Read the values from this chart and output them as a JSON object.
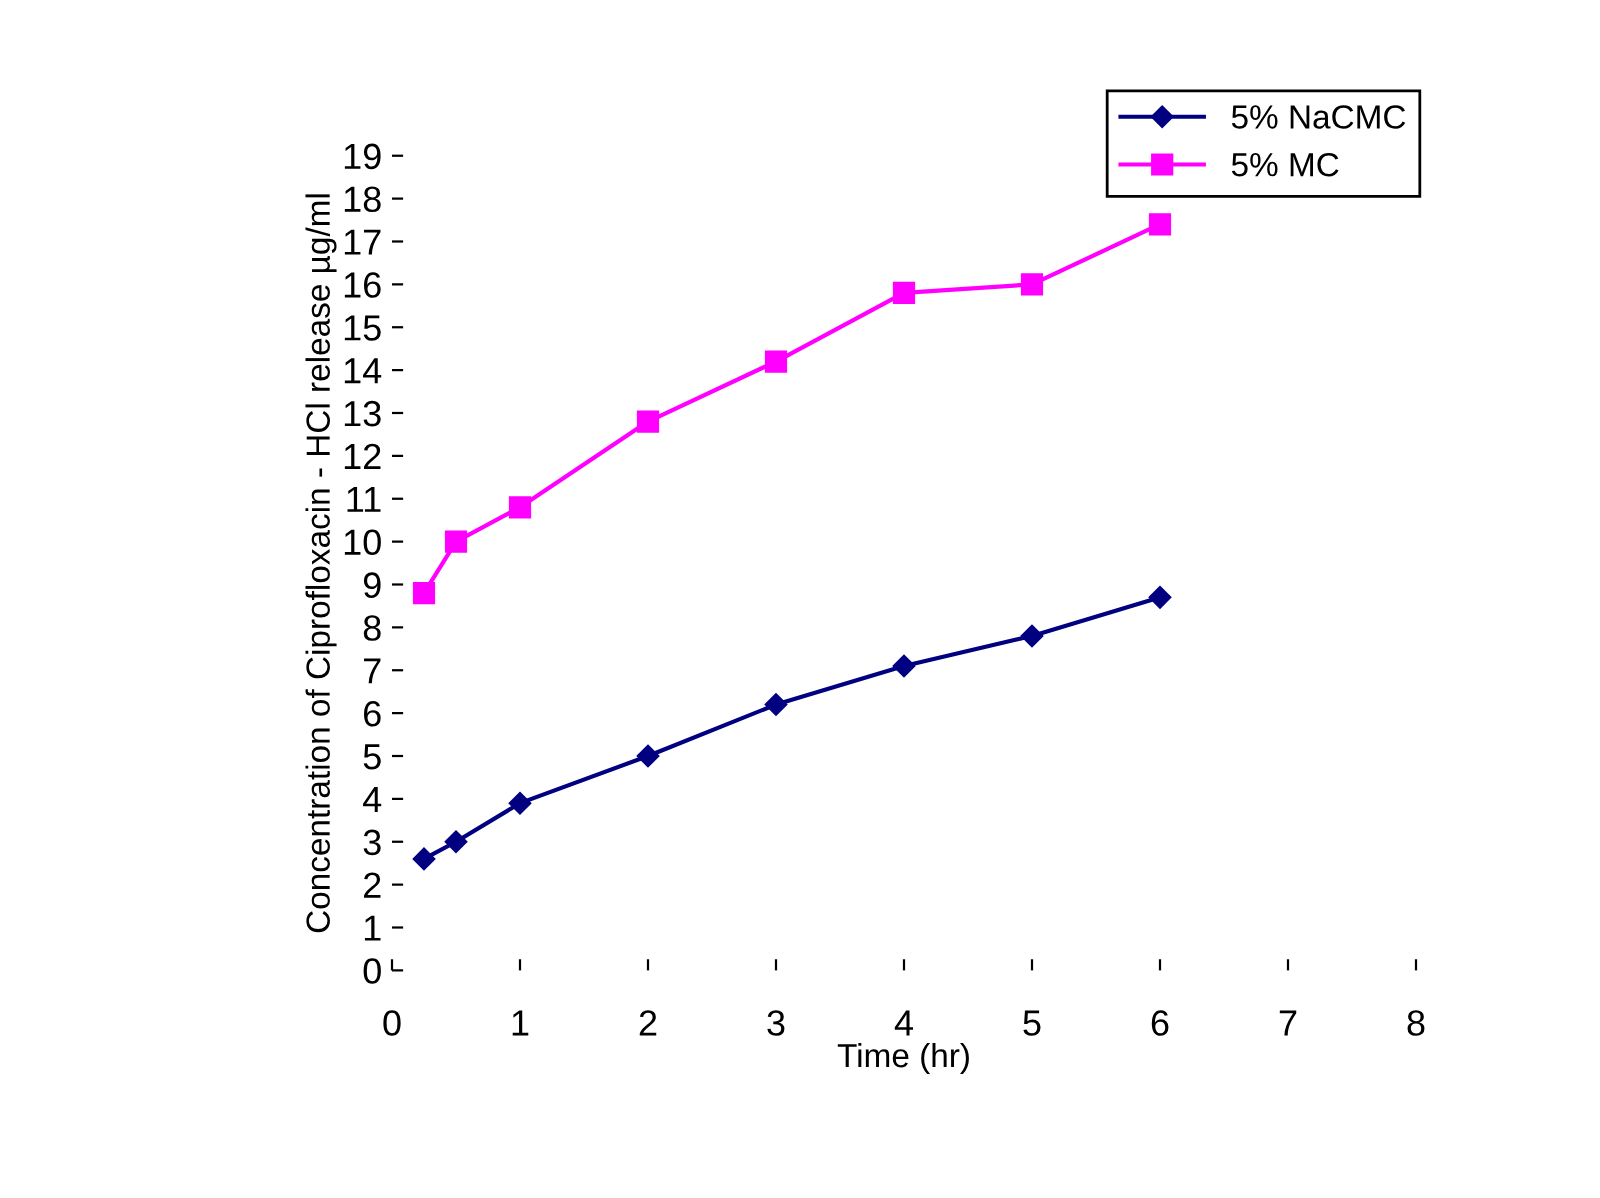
{
  "chart_data": {
    "type": "line",
    "xlabel": "Time (hr)",
    "ylabel": "Concentration of Ciprofloxacin - HCl release µg/ml",
    "x": [
      0.25,
      0.5,
      1,
      2,
      3,
      4,
      5,
      6
    ],
    "series": [
      {
        "name": "5% NaCMC",
        "color": "#000080",
        "marker": "diamond",
        "values": [
          2.6,
          3.0,
          3.9,
          5.0,
          6.2,
          7.1,
          7.8,
          8.7
        ]
      },
      {
        "name": "5% MC",
        "color": "#ff00ff",
        "marker": "square",
        "values": [
          8.8,
          10.0,
          10.8,
          12.8,
          14.2,
          15.8,
          16.0,
          17.4
        ]
      }
    ],
    "xlim": [
      0,
      8
    ],
    "xticks": [
      0,
      1,
      2,
      3,
      4,
      5,
      6,
      7,
      8
    ],
    "ylim": [
      0,
      19
    ],
    "yticks": [
      0,
      1,
      2,
      3,
      4,
      5,
      6,
      7,
      8,
      9,
      10,
      11,
      12,
      13,
      14,
      15,
      16,
      17,
      18,
      19
    ],
    "grid": false,
    "legend": "top right",
    "line_style": "solid"
  }
}
